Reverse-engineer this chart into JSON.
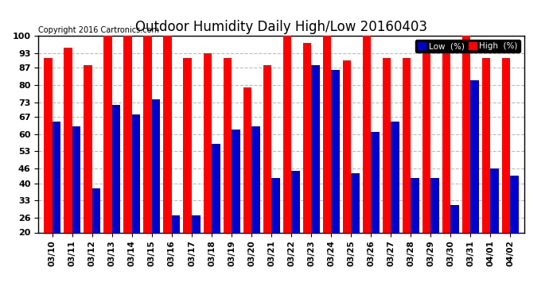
{
  "title": "Outdoor Humidity Daily High/Low 20160403",
  "copyright": "Copyright 2016 Cartronics.com",
  "categories": [
    "03/10",
    "03/11",
    "03/12",
    "03/13",
    "03/14",
    "03/15",
    "03/16",
    "03/17",
    "03/18",
    "03/19",
    "03/20",
    "03/21",
    "03/22",
    "03/23",
    "03/24",
    "03/25",
    "03/26",
    "03/27",
    "03/28",
    "03/29",
    "03/30",
    "03/31",
    "04/01",
    "04/02"
  ],
  "high_values": [
    91,
    95,
    88,
    100,
    100,
    100,
    100,
    91,
    93,
    91,
    79,
    88,
    100,
    97,
    100,
    90,
    100,
    91,
    91,
    95,
    95,
    100,
    91,
    91
  ],
  "low_values": [
    65,
    63,
    38,
    72,
    68,
    74,
    27,
    27,
    56,
    62,
    63,
    42,
    45,
    88,
    86,
    44,
    61,
    65,
    42,
    42,
    31,
    82,
    46,
    43
  ],
  "ymin": 20,
  "ylim": [
    20,
    100
  ],
  "yticks": [
    20,
    26,
    33,
    40,
    46,
    53,
    60,
    67,
    73,
    80,
    87,
    93,
    100
  ],
  "bar_width": 0.42,
  "high_color": "#ff0000",
  "low_color": "#0000cc",
  "bg_color": "#ffffff",
  "grid_color": "#bbbbbb",
  "title_fontsize": 12,
  "copyright_fontsize": 7,
  "legend_fontsize": 7.5
}
